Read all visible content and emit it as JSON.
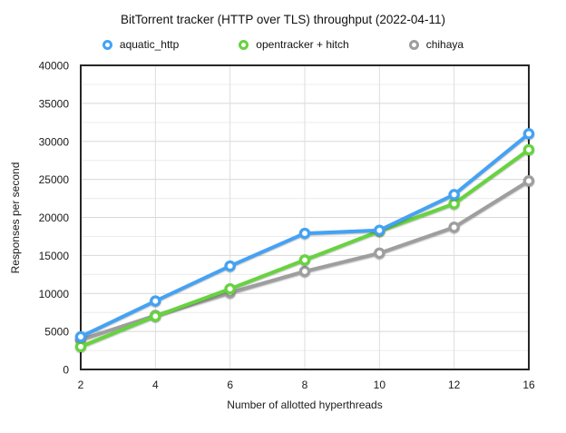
{
  "chart_data": {
    "type": "line",
    "title": "BitTorrent tracker (HTTP over TLS) throughput (2022-04-11)",
    "xlabel": "Number of allotted hyperthreads",
    "ylabel": "Responses per second",
    "categories": [
      2,
      4,
      6,
      8,
      10,
      12,
      16
    ],
    "ylim": [
      0,
      40000
    ],
    "y_ticks": [
      0,
      5000,
      10000,
      15000,
      20000,
      25000,
      30000,
      35000,
      40000
    ],
    "y_major_step": 5000,
    "y_minor_step": 2500,
    "grid": true,
    "legend_position": "top",
    "series": [
      {
        "name": "aquatic_http",
        "color": "#44A2F4",
        "values": [
          4300,
          9000,
          13600,
          17900,
          18300,
          23000,
          31000
        ]
      },
      {
        "name": "opentracker + hitch",
        "color": "#66D33F",
        "values": [
          3000,
          7000,
          10600,
          14400,
          18200,
          21800,
          28900
        ]
      },
      {
        "name": "chihaya",
        "color": "#9E9E9E",
        "values": [
          3900,
          7100,
          10100,
          12900,
          15300,
          18700,
          24800
        ]
      }
    ],
    "axis_color": "#262626",
    "major_grid_color": "#D8D8D8",
    "minor_grid_color": "#ECECEC",
    "vertical_grid_color": "#DDDDDD"
  }
}
